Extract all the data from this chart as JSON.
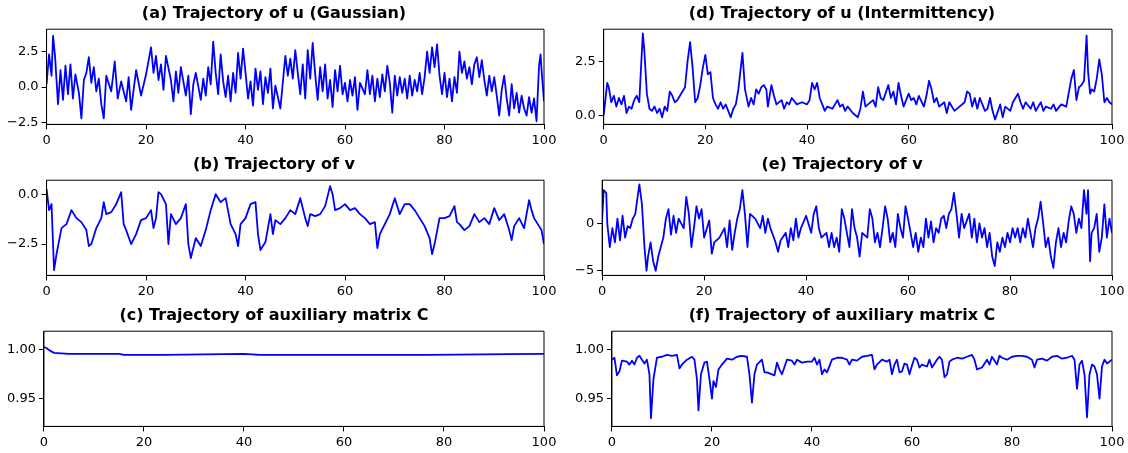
{
  "chart_data": [
    {
      "type": "line",
      "title": "(a) Trajectory of u (Gaussian)",
      "color": "#0000ff",
      "xlim": [
        0,
        100
      ],
      "xticks": [
        0,
        20,
        40,
        60,
        80,
        100
      ],
      "ylim": [
        -2.62,
        4.07
      ],
      "yticks": [
        {
          "value": -2.5,
          "label": "−2.5"
        },
        {
          "value": 0,
          "label": "0.0"
        },
        {
          "value": 2.5,
          "label": "2.5"
        }
      ],
      "x": [
        0,
        0.5,
        1,
        1.3,
        1.7,
        2,
        2.3,
        2.8,
        3.3,
        3.8,
        4.3,
        4.8,
        5.3,
        5.8,
        6.5,
        7,
        7.5,
        8,
        8.5,
        9,
        9.5,
        10,
        10.5,
        11,
        11.5,
        12,
        13,
        13.7,
        14.3,
        15,
        16,
        16.5,
        17,
        17.5,
        18,
        19,
        20,
        21,
        21.5,
        22,
        22.5,
        23,
        23.5,
        24,
        25,
        25.5,
        26,
        26.5,
        27,
        28,
        28.5,
        29,
        29.5,
        30,
        31,
        31.5,
        32,
        32.5,
        33,
        33.5,
        34,
        34.5,
        35,
        35.5,
        36,
        36.5,
        37,
        37.5,
        38,
        38.5,
        39,
        39.5,
        40,
        40.5,
        41,
        41.5,
        42,
        42.5,
        43,
        43.5,
        44,
        44.5,
        45,
        45.5,
        46,
        47,
        48,
        48.5,
        49,
        49.5,
        50,
        50.5,
        51,
        51.5,
        52,
        52.5,
        53,
        53.5,
        54,
        54.5,
        55,
        55.5,
        56,
        56.5,
        57,
        57.5,
        58,
        58.5,
        59,
        59.5,
        60,
        60.5,
        61,
        61.5,
        62,
        62.5,
        63,
        64,
        64.5,
        65,
        65.5,
        66,
        66.5,
        67,
        67.5,
        68,
        68.5,
        69,
        69.5,
        70,
        70.5,
        71,
        71.5,
        72,
        72.5,
        73,
        73.5,
        74,
        74.5,
        75,
        75.5,
        76,
        76.5,
        77,
        77.5,
        78,
        78.5,
        79,
        79.5,
        80,
        80.5,
        81,
        81.5,
        82,
        82.5,
        83,
        83.5,
        84,
        84.5,
        85,
        85.5,
        86,
        86.5,
        87,
        87.5,
        88,
        88.5,
        89,
        89.5,
        90,
        90.5,
        91,
        91.5,
        92,
        92.5,
        93,
        93.5,
        94,
        94.5,
        95,
        95.5,
        96,
        96.5,
        97,
        97.5,
        98,
        98.5,
        99,
        99.3,
        99.6,
        100
      ],
      "values": [
        0.2,
        2.3,
        0.8,
        3.6,
        2.2,
        0.5,
        -1.2,
        1.2,
        -0.9,
        1.5,
        -0.5,
        1.6,
        -0.8,
        0.9,
        -0.4,
        -2.2,
        0.5,
        1,
        2.1,
        0.3,
        1.4,
        -0.3,
        0.6,
        -1.2,
        -2.2,
        0.8,
        -0.3,
        1.8,
        -0.8,
        0.4,
        -1,
        0.7,
        -1.6,
        -0.2,
        1.2,
        -0.6,
        0.9,
        2.8,
        1,
        2.2,
        0.5,
        1.6,
        -0.2,
        2.2,
        0.5,
        -1,
        1.1,
        -0.4,
        1.4,
        -0.6,
        0.8,
        -1.9,
        0.2,
        1,
        -0.9,
        0.6,
        -0.6,
        1.4,
        0.2,
        3.2,
        1,
        -0.5,
        2.3,
        0.4,
        -0.7,
        0.8,
        -1,
        1,
        -0.4,
        2.4,
        0.6,
        2.7,
        1,
        -0.8,
        0.4,
        -1.3,
        1.3,
        -0.2,
        1.1,
        -1.2,
        0.7,
        -0.4,
        1.3,
        -1.5,
        0.1,
        -1.5,
        2.2,
        0.8,
        2,
        0.6,
        2.6,
        1,
        -0.5,
        1.6,
        -0.8,
        2.6,
        0.6,
        3.1,
        0.9,
        -0.9,
        1.4,
        -0.3,
        1.6,
        -0.8,
        0.5,
        -1.4,
        1.2,
        -0.3,
        1.5,
        -0.5,
        0.3,
        -1,
        0.5,
        -0.6,
        0.7,
        -1.6,
        0.3,
        -0.5,
        1.2,
        -0.5,
        0.8,
        -1,
        0.6,
        -0.7,
        0.9,
        -0.3,
        1.5,
        0.3,
        -1.8,
        0.8,
        -0.6,
        0.7,
        -0.4,
        0.6,
        -0.8,
        0.8,
        -0.6,
        0.5,
        -0.3,
        1,
        -0.5,
        0.7,
        2.5,
        1,
        2.8,
        1.4,
        3,
        0.8,
        -0.5,
        1,
        -0.7,
        0.6,
        -1,
        0.7,
        -0.4,
        2.5,
        1,
        1.8,
        0.6,
        1.4,
        0.2,
        1.6,
        2.1,
        0.7,
        1.9,
        0.5,
        -0.6,
        0.8,
        -0.3,
        0.7,
        -0.6,
        -2,
        -0.2,
        0.8,
        -0.8,
        -2,
        0.2,
        -1.5,
        -0.4,
        -1.8,
        -0.6,
        -1.5,
        -2,
        -0.7,
        -1.8,
        -0.8,
        -2.4,
        1.5,
        2.3,
        0.8,
        -1
      ]
    },
    {
      "type": "line",
      "title": "(d) Trajectory of u (Intermittency)",
      "color": "#0000ff",
      "xlim": [
        0,
        100
      ],
      "xticks": [
        0,
        20,
        40,
        60,
        80,
        100
      ],
      "ylim": [
        -0.43,
        4.0
      ],
      "yticks": [
        {
          "value": 0,
          "label": "0.0"
        },
        {
          "value": 2.5,
          "label": "2.5"
        }
      ],
      "x": [
        0,
        0.7,
        1,
        1.5,
        2,
        2.5,
        3,
        3.5,
        4,
        4.5,
        5,
        5.5,
        6,
        6.5,
        7,
        7.3,
        7.7,
        8,
        8.5,
        9,
        9.5,
        10,
        10.5,
        11,
        11.5,
        12,
        12.5,
        13,
        13.5,
        14,
        14.5,
        15,
        16,
        16.5,
        17,
        17.5,
        18,
        18.5,
        19,
        19.5,
        20,
        20.5,
        21,
        21.5,
        22,
        22.5,
        23,
        23.5,
        24,
        24.5,
        25,
        25.5,
        26,
        26.5,
        27.3,
        27.8,
        28.5,
        29,
        29.5,
        30,
        30.5,
        31,
        31.5,
        32,
        32.3,
        33,
        33.5,
        34,
        35,
        35.5,
        36,
        36.5,
        37,
        38,
        39,
        40,
        40.5,
        41,
        41.5,
        42,
        42.5,
        43,
        43.5,
        44,
        45,
        46,
        46.5,
        47,
        47.5,
        48,
        49,
        50,
        50.5,
        51,
        51.5,
        52,
        53,
        53.5,
        54,
        54.5,
        55,
        56,
        56.5,
        57,
        57.5,
        58,
        58.5,
        59,
        60,
        60.5,
        61,
        61.5,
        62,
        63,
        63.5,
        64,
        64.5,
        65,
        65.5,
        66,
        67,
        67.5,
        68,
        69,
        70,
        71,
        71.5,
        72,
        72.5,
        73,
        73.5,
        74,
        75,
        75.5,
        76,
        76.5,
        77,
        78,
        78.5,
        79,
        80,
        80.5,
        81,
        81.5,
        82,
        82.5,
        83,
        84,
        84.5,
        85,
        86,
        86.5,
        87,
        88,
        88.5,
        89,
        90,
        91,
        92,
        92.5,
        93,
        93.5,
        94,
        94.5,
        95,
        95.3,
        95.7,
        96,
        96.5,
        97,
        97.5,
        98,
        98.5,
        99,
        99.5,
        100
      ],
      "values": [
        0,
        1.5,
        1.3,
        0.6,
        0.9,
        0.4,
        0.8,
        0.5,
        0.9,
        0.1,
        0.4,
        0.3,
        0.7,
        0.9,
        0.6,
        2,
        3.8,
        3,
        1,
        0.3,
        0.2,
        0.4,
        0.1,
        0.3,
        -0.1,
        0.4,
        0.2,
        1.1,
        0.9,
        0.6,
        0.7,
        0.9,
        1.3,
        2.5,
        3.4,
        2.2,
        0.6,
        0.8,
        1.4,
        2.2,
        2.8,
        1.9,
        2,
        0.8,
        0.5,
        0.3,
        0.6,
        0.3,
        0.5,
        0.2,
        -0.1,
        0.3,
        0.5,
        1.2,
        2.9,
        1.2,
        0.4,
        0.8,
        0.5,
        1.2,
        1,
        1.3,
        1.4,
        1.2,
        0.4,
        1.4,
        0.9,
        0.5,
        0.7,
        0.3,
        0.6,
        0.5,
        0.8,
        0.5,
        0.6,
        0.5,
        0.7,
        1.5,
        1.2,
        1.5,
        0.8,
        0.5,
        0.2,
        0.4,
        0.3,
        0.7,
        0.4,
        0.5,
        0.2,
        0.4,
        0.1,
        -0.1,
        0.3,
        1.1,
        0.4,
        0.5,
        0.7,
        0.4,
        1.3,
        0.8,
        0.7,
        1.4,
        0.8,
        1.1,
        0.5,
        1.5,
        0.9,
        0.4,
        1,
        0.7,
        0.8,
        0.5,
        0.9,
        0.4,
        0.9,
        1.6,
        1.2,
        0.6,
        0.8,
        0.4,
        0.6,
        0.1,
        0.6,
        0.2,
        0.4,
        0.6,
        1.1,
        1,
        0.4,
        0.8,
        0.3,
        0.8,
        0.2,
        0.3,
        0.8,
        0.2,
        -0.2,
        0.5,
        -0.1,
        0.4,
        0.2,
        0.6,
        0.8,
        1,
        0.6,
        0.3,
        0.6,
        0.3,
        0.6,
        0.2,
        0.6,
        0.2,
        0.4,
        0.3,
        0.5,
        0.2,
        0.5,
        0.4,
        1.7,
        2.1,
        0.7,
        1.3,
        1.4,
        1.6,
        3.7,
        2,
        1,
        1.2,
        1.1,
        1.7,
        2.6,
        1.9,
        0.6,
        0.8,
        0.6,
        0.5
      ]
    },
    {
      "type": "line",
      "title": "(b) Trajectory of v",
      "color": "#0000ff",
      "xlim": [
        0,
        100
      ],
      "xticks": [
        0,
        20,
        40,
        60,
        80,
        100
      ],
      "ylim": [
        -4.07,
        0.7
      ],
      "yticks": [
        {
          "value": -2.5,
          "label": "−2.5"
        },
        {
          "value": 0,
          "label": "0.0"
        }
      ],
      "x": [
        0,
        0.5,
        1,
        1.5,
        2,
        3,
        4,
        5,
        6,
        7,
        8,
        8.5,
        9,
        10,
        11,
        11.5,
        12,
        13,
        14,
        15,
        15.5,
        16,
        17,
        18,
        19,
        20,
        21,
        21.5,
        22,
        22.5,
        23,
        24,
        24.5,
        25,
        26,
        27,
        28,
        28.5,
        29,
        30,
        31,
        32,
        33,
        34,
        35,
        36,
        37,
        38,
        38.5,
        39,
        40,
        41,
        42,
        42.5,
        43,
        44,
        45,
        45.5,
        46,
        47,
        48,
        49,
        50,
        51,
        52,
        52.5,
        53,
        54,
        55,
        56,
        57,
        57.5,
        58,
        59,
        60,
        61,
        62,
        63,
        64,
        65,
        66,
        66.5,
        67,
        68,
        69,
        70,
        71,
        72,
        73,
        74,
        75,
        76,
        77,
        77.5,
        78,
        79,
        80,
        81,
        82,
        82.5,
        83,
        84,
        85,
        86,
        87,
        88,
        89,
        90,
        91,
        92,
        93,
        93.5,
        94,
        95,
        96,
        97,
        97.5,
        98,
        99,
        99.5,
        100
      ],
      "values": [
        0.25,
        -0.8,
        -0.5,
        -3.8,
        -3,
        -1.7,
        -1.5,
        -0.8,
        -1.2,
        -1.4,
        -1.8,
        -2.6,
        -2.5,
        -1.7,
        -1.2,
        -0.4,
        -1,
        -0.9,
        -0.5,
        0.1,
        -1.5,
        -1.8,
        -2.5,
        -2,
        -1.3,
        -1.2,
        -0.8,
        -1.7,
        -1.2,
        0.1,
        0,
        -0.5,
        -2.5,
        -1,
        -1.5,
        -1.2,
        -0.5,
        -2.5,
        -3.2,
        -2.2,
        -2.6,
        -1.8,
        -0.8,
        0,
        -0.4,
        -0.2,
        -1.5,
        -2,
        -2.6,
        -1.5,
        -1.2,
        -0.5,
        -0.4,
        -2,
        -2.8,
        -2.4,
        -1,
        -2,
        -1.3,
        -1.5,
        -1.2,
        -0.8,
        -1,
        -0.2,
        -1.2,
        -1.6,
        -1,
        -1.1,
        -1,
        -0.6,
        0.4,
        0,
        -0.8,
        -0.7,
        -0.5,
        -0.8,
        -0.7,
        -1,
        -1.2,
        -1.5,
        -1.4,
        -2.7,
        -2,
        -1.5,
        -1,
        -0.2,
        -1,
        -0.5,
        -0.5,
        -0.8,
        -1.2,
        -1.6,
        -2.2,
        -3,
        -2.5,
        -1.2,
        -1.2,
        -1.1,
        -0.6,
        -1.4,
        -1.5,
        -1.8,
        -1.6,
        -1,
        -1.4,
        -1.2,
        -1.5,
        -0.7,
        -1.3,
        -1,
        -1.8,
        -2.3,
        -1.6,
        -1.2,
        -1.7,
        -0.3,
        -0.8,
        -1.2,
        -1.6,
        -1.8,
        -2.5
      ]
    },
    {
      "type": "line",
      "title": "(e) Trajectory of v",
      "color": "#0000ff",
      "xlim": [
        0,
        100
      ],
      "xticks": [
        0,
        20,
        40,
        60,
        80,
        100
      ],
      "ylim": [
        -5.49,
        4.55
      ],
      "yticks": [
        {
          "value": -5,
          "label": "−5"
        },
        {
          "value": 0,
          "label": "0"
        }
      ],
      "x": [
        0,
        0.3,
        0.8,
        1,
        1.5,
        2,
        2.5,
        3,
        3.5,
        4,
        4.5,
        5,
        5.5,
        6,
        6.5,
        7,
        7.3,
        7.8,
        8.3,
        8.7,
        9,
        9.5,
        10,
        10.5,
        11,
        11.5,
        12,
        12.5,
        13,
        13.5,
        14,
        14.5,
        15,
        16,
        16.5,
        17,
        17.5,
        18,
        18.5,
        19,
        19.5,
        20,
        21,
        21.5,
        22,
        23,
        24,
        24.5,
        25,
        25.5,
        26,
        26.5,
        27,
        27.5,
        28,
        28.5,
        29,
        30,
        31,
        31.5,
        32,
        32.5,
        33,
        34,
        34.5,
        35,
        36,
        36.5,
        37,
        37.5,
        38,
        38.5,
        39,
        40,
        41,
        41.5,
        42,
        42.5,
        43,
        44,
        44.5,
        45,
        45.5,
        46,
        46.5,
        47,
        47.5,
        48,
        48.5,
        49,
        49.5,
        50,
        50.5,
        51,
        52,
        52.5,
        53,
        53.5,
        54,
        54.5,
        55,
        55.5,
        56,
        56.5,
        57,
        57.5,
        58,
        58.5,
        59,
        59.5,
        60,
        60.5,
        61,
        61.5,
        62,
        62.5,
        63,
        63.5,
        64,
        64.5,
        65,
        65.5,
        66,
        66.5,
        67,
        67.5,
        68,
        68.5,
        69,
        69.5,
        70,
        70.5,
        71,
        72,
        72.5,
        73,
        73.5,
        74,
        74.5,
        75,
        75.5,
        76,
        76.5,
        77,
        77.5,
        78,
        78.5,
        79,
        79.5,
        80,
        80.5,
        81,
        81.5,
        82,
        82.5,
        83,
        83.5,
        84,
        84.5,
        85,
        85.5,
        86,
        86.5,
        87,
        87.5,
        88,
        88.5,
        89,
        89.5,
        90,
        90.5,
        91,
        91.5,
        92,
        92.5,
        93,
        93.5,
        94,
        94.5,
        95,
        95.3,
        95.7,
        96,
        96.5,
        97,
        97.5,
        98,
        98.5,
        99,
        99.5,
        100
      ],
      "values": [
        0.5,
        3.5,
        3.2,
        0,
        -2.5,
        -0.5,
        -2,
        0.5,
        -1.8,
        0.8,
        -1.5,
        -0.3,
        -0.5,
        0.5,
        1,
        3,
        4.1,
        2,
        -2.5,
        -5,
        -3.5,
        -2,
        -4,
        -5,
        -3.5,
        -2.5,
        -1.5,
        0.5,
        1.5,
        -1.2,
        0.8,
        -1,
        0.5,
        -0.5,
        2.8,
        1,
        -2.5,
        -0.5,
        1.8,
        0.5,
        1.5,
        -1.5,
        0.3,
        -3.2,
        -2,
        -1.5,
        -0.5,
        -2.5,
        0.3,
        -2.8,
        -1,
        0.5,
        1.5,
        3.5,
        1,
        -2.5,
        1,
        0.5,
        -0.5,
        0.8,
        -1,
        0.5,
        -0.5,
        -2,
        -3,
        -1.8,
        -1,
        -2.5,
        -0.5,
        -1.8,
        0.5,
        -1.5,
        -0.5,
        0.8,
        -1,
        1,
        1.8,
        -0.5,
        -1.5,
        -1,
        -2.5,
        -1,
        -2.5,
        -1.5,
        -3,
        1.5,
        0.5,
        -1,
        -2.5,
        1.5,
        -0.5,
        -1.5,
        -3.5,
        -1,
        -1.5,
        1.5,
        0.5,
        -2,
        -1,
        -2.5,
        -0.5,
        1.8,
        0.5,
        -2,
        -1,
        -2.5,
        1,
        -0.5,
        -1.5,
        1.8,
        0.5,
        -1,
        -2.5,
        -1,
        -3,
        -1.5,
        -2.5,
        0.5,
        -1.5,
        0.2,
        -2,
        -0.5,
        -1,
        0.5,
        0.8,
        -0.5,
        1,
        1.5,
        3.2,
        1,
        -1.5,
        1,
        -0.5,
        1,
        -1.5,
        0.5,
        -2,
        0,
        -1.5,
        -0.5,
        -2.5,
        -1,
        -3.5,
        -4.5,
        -2,
        -3,
        -1.5,
        -2.5,
        -1,
        -2,
        -0.5,
        -1.5,
        -0.5,
        -2,
        -0.5,
        -1.5,
        0.5,
        -1,
        -2.5,
        -0.5,
        0.5,
        2.3,
        0,
        -2.5,
        -1.5,
        -3.5,
        -4.7,
        -2,
        -0.5,
        -2.5,
        -1,
        -2,
        0.2,
        1.8,
        1,
        -1,
        0.5,
        -0.5,
        3.5,
        1,
        3.5,
        -4,
        -1,
        -0.5,
        1,
        -3,
        -1.5,
        2,
        -1.5,
        0.5,
        -1
      ]
    },
    {
      "type": "line",
      "title": "(c) Trajectory of auxiliary matrix C",
      "color": "#0000ff",
      "xlim": [
        0,
        100
      ],
      "xticks": [
        0,
        20,
        40,
        60,
        80,
        100
      ],
      "ylim": [
        0.9216,
        1.0192
      ],
      "yticks": [
        {
          "value": 0.95,
          "label": "0.95"
        },
        {
          "value": 1,
          "label": "1.00"
        }
      ],
      "x": [
        0,
        0.5,
        1,
        2,
        5,
        15,
        16,
        24,
        40,
        43,
        77,
        100
      ],
      "values": [
        1.003,
        1.002,
        1.0,
        0.997,
        0.996,
        0.996,
        0.995,
        0.995,
        0.996,
        0.995,
        0.995,
        0.996
      ]
    },
    {
      "type": "line",
      "title": "(f) Trajectory of auxiliary matrix C",
      "color": "#0000ff",
      "xlim": [
        0,
        100
      ],
      "xticks": [
        0,
        20,
        40,
        60,
        80,
        100
      ],
      "ylim": [
        0.9216,
        1.0192
      ],
      "yticks": [
        {
          "value": 0.95,
          "label": "0.95"
        },
        {
          "value": 1,
          "label": "1.00"
        }
      ],
      "x": [
        0,
        0.5,
        1,
        1.5,
        2,
        3,
        3.5,
        4,
        4.5,
        5,
        5.5,
        6,
        6.5,
        7,
        7.5,
        7.8,
        8.3,
        9,
        10,
        11,
        12,
        13,
        13.5,
        14,
        15,
        16,
        16.5,
        17,
        17.3,
        17.8,
        18.5,
        19,
        19.5,
        20,
        20.3,
        20.8,
        21.3,
        22,
        23,
        24,
        25,
        26,
        27,
        27.5,
        28,
        28.5,
        29,
        30,
        30.5,
        31,
        32,
        32.5,
        33,
        33.5,
        34,
        35,
        36,
        36.5,
        37,
        38,
        39,
        40,
        40.5,
        41,
        41.5,
        42,
        42.5,
        43,
        44,
        45,
        46,
        47,
        47.5,
        48,
        49,
        50,
        51,
        52,
        52.5,
        53,
        54,
        55,
        55.5,
        56,
        56.5,
        57,
        57.5,
        58,
        58.5,
        59,
        59.5,
        60,
        60.5,
        61,
        61.5,
        62,
        63,
        63.5,
        64,
        65,
        65.5,
        66,
        66.5,
        67,
        67.5,
        68,
        69,
        70,
        71,
        72,
        72.5,
        73,
        74,
        75,
        75.5,
        76,
        77,
        77.5,
        78,
        79,
        80,
        81,
        82,
        83,
        84,
        84.5,
        85,
        86,
        87,
        88,
        89,
        90,
        91,
        92,
        92.5,
        93,
        93.5,
        94,
        94.5,
        95,
        95.5,
        96,
        96.5,
        97,
        97.5,
        98,
        98.5,
        99,
        100
      ],
      "values": [
        0.99,
        0.992,
        0.974,
        0.978,
        0.989,
        0.988,
        0.985,
        0.989,
        0.985,
        0.992,
        0.994,
        0.99,
        0.986,
        0.99,
        0.975,
        0.93,
        0.97,
        0.992,
        0.993,
        0.995,
        0.994,
        0.995,
        0.981,
        0.985,
        0.99,
        0.993,
        0.99,
        0.97,
        0.938,
        0.975,
        0.987,
        0.988,
        0.97,
        0.95,
        0.968,
        0.962,
        0.98,
        0.985,
        0.991,
        0.99,
        0.993,
        0.994,
        0.993,
        0.975,
        0.946,
        0.975,
        0.985,
        0.99,
        0.977,
        0.977,
        0.975,
        0.974,
        0.987,
        0.98,
        0.975,
        0.99,
        0.989,
        0.985,
        0.99,
        0.987,
        0.988,
        0.988,
        0.992,
        0.985,
        0.99,
        0.975,
        0.98,
        0.977,
        0.99,
        0.992,
        0.992,
        0.99,
        0.985,
        0.99,
        0.989,
        0.993,
        0.994,
        0.995,
        0.98,
        0.985,
        0.99,
        0.988,
        0.99,
        0.975,
        0.985,
        0.99,
        0.977,
        0.978,
        0.986,
        0.985,
        0.975,
        0.984,
        0.992,
        0.99,
        0.982,
        0.985,
        0.983,
        0.99,
        0.982,
        0.99,
        0.993,
        0.99,
        0.972,
        0.975,
        0.988,
        0.99,
        0.992,
        0.991,
        0.993,
        0.995,
        0.99,
        0.98,
        0.982,
        0.99,
        0.985,
        0.993,
        0.985,
        0.994,
        0.992,
        0.99,
        0.993,
        0.994,
        0.994,
        0.993,
        0.99,
        0.982,
        0.99,
        0.991,
        0.989,
        0.993,
        0.994,
        0.991,
        0.992,
        0.994,
        0.99,
        0.96,
        0.985,
        0.989,
        0.975,
        0.931,
        0.975,
        0.985,
        0.983,
        0.975,
        0.95,
        0.983,
        0.99,
        0.986,
        0.99
      ]
    }
  ]
}
